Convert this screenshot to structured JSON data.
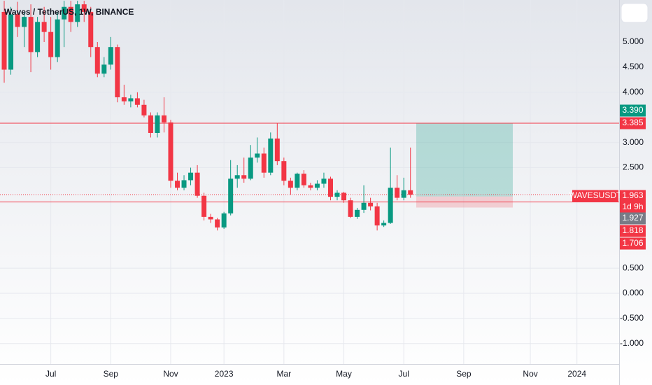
{
  "chart_data": {
    "type": "candlestick",
    "title": "Waves / TetherUS, 1W, BINANCE",
    "categories": [
      null,
      null,
      null,
      null,
      null,
      null,
      null,
      "Jul",
      null,
      null,
      null,
      null,
      null,
      null,
      null,
      null,
      "Sep",
      null,
      null,
      null,
      null,
      null,
      null,
      null,
      null,
      "Nov",
      null,
      null,
      null,
      null,
      null,
      null,
      null,
      "2023",
      null,
      null,
      null,
      null,
      null,
      null,
      null,
      null,
      "Mar",
      null,
      null,
      null,
      null,
      null,
      null,
      null,
      null,
      "May",
      null,
      null,
      null,
      null,
      null,
      null,
      null,
      null,
      "Jul",
      null,
      null,
      null,
      null,
      null,
      null,
      null,
      null,
      "Sep",
      null,
      null,
      null,
      null,
      null,
      null,
      null,
      null,
      null,
      "Nov",
      null,
      null,
      null,
      null,
      null,
      null,
      "2024",
      null,
      null,
      null,
      null,
      null
    ],
    "open": [
      5.6,
      4.45,
      5.55,
      5.3,
      5.5,
      4.8,
      5.4,
      5.2,
      4.7,
      5.45,
      5.7,
      5.4,
      5.75,
      5.6,
      4.9,
      4.37,
      4.55,
      4.9,
      3.9,
      3.82,
      3.88,
      3.75,
      3.54,
      3.19,
      3.54,
      3.4,
      2.24,
      2.1,
      2.25,
      2.4,
      1.94,
      1.52,
      1.47,
      1.31,
      1.59,
      2.28,
      2.35,
      2.28,
      2.7,
      2.78,
      2.4,
      3.08,
      2.63,
      2.24,
      2.1,
      2.38,
      2.15,
      2.1,
      2.18,
      2.28,
      1.92,
      2.0,
      1.85,
      1.52,
      1.66,
      1.8,
      1.73,
      1.35,
      1.4,
      2.1,
      1.9,
      2.05,
      null,
      null,
      null,
      null,
      null,
      null,
      null,
      null,
      null,
      null,
      null,
      null,
      null,
      null,
      null,
      null,
      null,
      null,
      null,
      null,
      null,
      null,
      null,
      null,
      null,
      null,
      null,
      null,
      null,
      null
    ],
    "high": [
      5.82,
      5.7,
      5.8,
      5.6,
      5.75,
      5.5,
      5.7,
      5.5,
      5.6,
      5.82,
      5.82,
      5.82,
      5.82,
      5.7,
      5.0,
      4.7,
      5.1,
      4.95,
      4.15,
      3.95,
      4.0,
      3.85,
      3.6,
      3.6,
      3.9,
      3.45,
      2.4,
      2.35,
      2.5,
      2.55,
      2.0,
      1.58,
      1.5,
      1.62,
      2.65,
      2.55,
      2.7,
      2.95,
      3.1,
      2.9,
      3.2,
      3.39,
      2.7,
      2.3,
      2.4,
      2.45,
      2.2,
      2.25,
      2.4,
      2.32,
      2.05,
      2.02,
      1.9,
      1.7,
      2.15,
      1.9,
      1.8,
      1.45,
      2.9,
      2.35,
      2.3,
      2.9,
      null,
      null,
      null,
      null,
      null,
      null,
      null,
      null,
      null,
      null,
      null,
      null,
      null,
      null,
      null,
      null,
      null,
      null,
      null,
      null,
      null,
      null,
      null,
      null,
      null,
      null,
      null,
      null,
      null,
      null
    ],
    "low": [
      4.19,
      4.35,
      5.1,
      4.9,
      4.4,
      4.7,
      5.0,
      4.45,
      4.6,
      4.9,
      5.2,
      5.3,
      5.4,
      4.7,
      4.3,
      4.3,
      4.45,
      3.8,
      3.75,
      3.7,
      3.7,
      3.5,
      3.1,
      3.1,
      3.2,
      2.1,
      2.05,
      2.05,
      2.15,
      1.9,
      1.45,
      1.4,
      1.25,
      1.28,
      1.55,
      2.1,
      2.2,
      2.25,
      2.6,
      2.3,
      2.35,
      2.55,
      2.15,
      1.96,
      2.05,
      2.1,
      2.05,
      2.05,
      2.1,
      1.85,
      1.85,
      1.8,
      1.5,
      1.48,
      1.6,
      1.65,
      1.25,
      1.32,
      1.38,
      1.85,
      1.85,
      1.9,
      null,
      null,
      null,
      null,
      null,
      null,
      null,
      null,
      null,
      null,
      null,
      null,
      null,
      null,
      null,
      null,
      null,
      null,
      null,
      null,
      null,
      null,
      null,
      null,
      null,
      null,
      null,
      null,
      null,
      null
    ],
    "close": [
      4.45,
      5.55,
      5.3,
      5.5,
      4.8,
      5.4,
      5.2,
      4.7,
      5.45,
      5.7,
      5.4,
      5.75,
      5.6,
      4.9,
      4.37,
      4.55,
      4.9,
      3.9,
      3.82,
      3.88,
      3.75,
      3.54,
      3.19,
      3.54,
      3.4,
      2.24,
      2.1,
      2.25,
      2.4,
      1.94,
      1.52,
      1.47,
      1.31,
      1.59,
      2.28,
      2.35,
      2.28,
      2.7,
      2.78,
      2.4,
      3.08,
      2.63,
      2.24,
      2.1,
      2.38,
      2.15,
      2.1,
      2.18,
      2.28,
      1.92,
      2.0,
      1.85,
      1.52,
      1.66,
      1.8,
      1.73,
      1.35,
      1.4,
      2.1,
      1.9,
      2.05,
      1.963,
      null,
      null,
      null,
      null,
      null,
      null,
      null,
      null,
      null,
      null,
      null,
      null,
      null,
      null,
      null,
      null,
      null,
      null,
      null,
      null,
      null,
      null,
      null,
      null,
      null,
      null,
      null,
      null,
      null,
      null
    ],
    "up_color": "#089981",
    "down_color": "#f23645",
    "ylim": [
      -1.407,
      5.836
    ],
    "yticks": [
      {
        "value": 5,
        "label": "5.000"
      },
      {
        "value": 4.5,
        "label": "4.500"
      },
      {
        "value": 4,
        "label": "4.000"
      },
      {
        "value": 3,
        "label": "3.000"
      },
      {
        "value": 2.5,
        "label": "2.500"
      },
      {
        "value": 0.5,
        "label": "0.500"
      },
      {
        "value": 0,
        "label": "0.000"
      },
      {
        "value": -0.5,
        "label": "-0.500"
      },
      {
        "value": -1,
        "label": "-1.000"
      }
    ],
    "grid": true,
    "levels": [
      3.385,
      1.818
    ],
    "last_price": {
      "symbol": "WAVESUSDT",
      "value": 1.963,
      "countdown": "1d 9h"
    },
    "position": {
      "target": {
        "value": 3.39,
        "label": "3.390"
      },
      "entry": 1.927,
      "stop": 1.706
    }
  }
}
